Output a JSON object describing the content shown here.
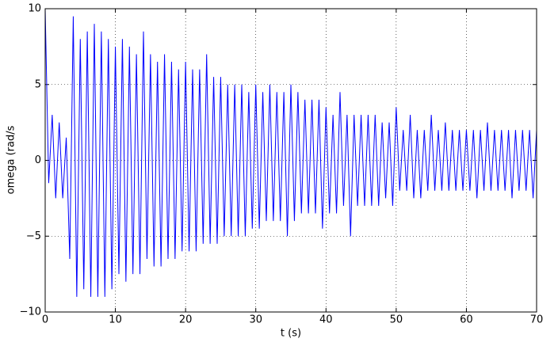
{
  "chart_data": {
    "type": "line",
    "xlabel": "t (s)",
    "ylabel": "omega (rad/s",
    "xlim": [
      0,
      70
    ],
    "ylim": [
      -10,
      10
    ],
    "xticks": [
      0,
      10,
      20,
      30,
      40,
      50,
      60,
      70
    ],
    "yticks": [
      {
        "value": -10,
        "label": "−10"
      },
      {
        "value": -5,
        "label": "−5"
      },
      0,
      5,
      10
    ],
    "grid": true,
    "series": [
      {
        "color": "#0000ff",
        "x": [
          0,
          0.5,
          1,
          1.5,
          2,
          2.5,
          3,
          3.5,
          4,
          4.5,
          5,
          5.5,
          6,
          6.5,
          7,
          7.5,
          8,
          8.5,
          9,
          9.5,
          10,
          10.5,
          11,
          11.5,
          12,
          12.5,
          13,
          13.5,
          14,
          14.5,
          15,
          15.5,
          16,
          16.5,
          17,
          17.5,
          18,
          18.5,
          19,
          19.5,
          20,
          20.5,
          21,
          21.5,
          22,
          22.5,
          23,
          23.5,
          24,
          24.5,
          25,
          25.5,
          26,
          26.5,
          27,
          27.5,
          28,
          28.5,
          29,
          29.5,
          30,
          30.5,
          31,
          31.5,
          32,
          32.5,
          33,
          33.5,
          34,
          34.5,
          35,
          35.5,
          36,
          36.5,
          37,
          37.5,
          38,
          38.5,
          39,
          39.5,
          40,
          40.5,
          41,
          41.5,
          42,
          42.5,
          43,
          43.5,
          44,
          44.5,
          45,
          45.5,
          46,
          46.5,
          47,
          47.5,
          48,
          48.5,
          49,
          49.5,
          50,
          50.5,
          51,
          51.5,
          52,
          52.5,
          53,
          53.5,
          54,
          54.5,
          55,
          55.5,
          56,
          56.5,
          57,
          57.5,
          58,
          58.5,
          59,
          59.5,
          60,
          60.5,
          61,
          61.5,
          62,
          62.5,
          63,
          63.5,
          64,
          64.5,
          65,
          65.5,
          66,
          66.5,
          67,
          67.5,
          68,
          68.5,
          69,
          69.5,
          70
        ],
        "values": [
          10,
          -1.5,
          3,
          -2.5,
          2.5,
          -2.5,
          1.5,
          -6.5,
          9.5,
          -9,
          8,
          -8.5,
          8.5,
          -9,
          9,
          -9,
          8.5,
          -9,
          8,
          -8.5,
          7.5,
          -7.5,
          8,
          -8,
          7.5,
          -7.5,
          7,
          -7.5,
          8.5,
          -6.5,
          7,
          -7,
          6.5,
          -7,
          7,
          -6.5,
          6.5,
          -6.5,
          6,
          -6,
          6.5,
          -6,
          6,
          -6,
          6,
          -5.5,
          7,
          -5.5,
          5.5,
          -5.5,
          5.5,
          -5,
          5,
          -5,
          5,
          -5,
          5,
          -5,
          4.5,
          -4.5,
          5,
          -4.5,
          4.5,
          -4,
          5,
          -4,
          4.5,
          -4,
          4.5,
          -5,
          5,
          -4,
          4.5,
          -3.5,
          4,
          -3.5,
          4,
          -3.5,
          4,
          -4.5,
          3.5,
          -3.5,
          3,
          -3.5,
          4.5,
          -3,
          3,
          -5,
          3,
          -3,
          3,
          -3,
          3,
          -3,
          3,
          -3,
          2.5,
          -2.5,
          2.5,
          -3,
          3.5,
          -2,
          2,
          -2,
          3,
          -2.5,
          2,
          -2.5,
          2,
          -2,
          3,
          -2,
          2,
          -2,
          2.5,
          -2,
          2,
          -2,
          2,
          -2,
          2,
          -2,
          2,
          -2.5,
          2,
          -2,
          2.5,
          -2,
          2,
          -2,
          2,
          -2,
          2,
          -2.5,
          2,
          -2,
          2,
          -2,
          2,
          -2.5,
          2
        ]
      }
    ]
  }
}
